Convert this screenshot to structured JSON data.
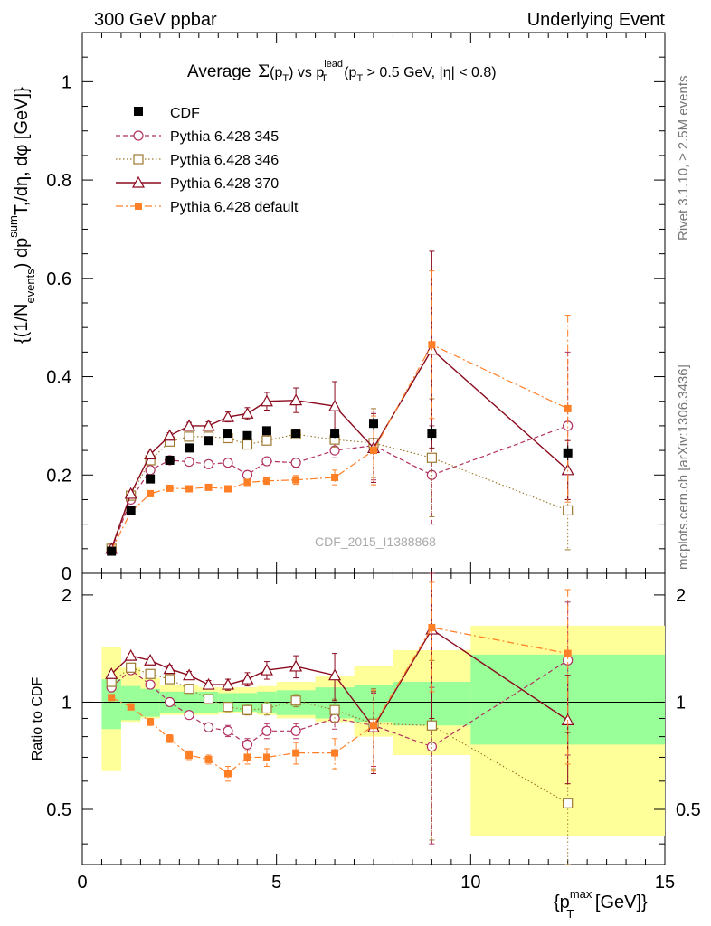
{
  "header": {
    "left": "300 GeV ppbar",
    "right": "Underlying Event"
  },
  "side_text": {
    "rivet": "Rivet 3.1.10, ≥ 2.5M events",
    "mcplots": "mcplots.cern.ch [arXiv:1306.3436]"
  },
  "watermark": "CDF_2015_I1388868",
  "title": {
    "prefix": "Average",
    "sigma": "Σ",
    "paren": "(p",
    "paren_sub": "T",
    "paren_close": ")",
    "vs": " vs p",
    "vs_sup": "lead",
    "vs_sub": "T",
    "cut_a": " (p",
    "cut_sub": "T",
    "cut_b": " > 0.5 GeV, |η| < 0.8)"
  },
  "axes": {
    "ylabel_main": {
      "a": "{(1/N",
      "a_sub": "events",
      "b": ") dp",
      "b_sup": "sum",
      "c": "T",
      "d": ",/dη, dφ [GeV]}"
    },
    "ylabel_ratio": "Ratio to CDF",
    "xlabel": {
      "a": "{p",
      "a_sup": "max",
      "a_sub": "T",
      "b": " [GeV]}"
    }
  },
  "colors": {
    "cdf": "#000000",
    "p345": "#b03060",
    "p346": "#9e7a30",
    "p370": "#8b0a1e",
    "pdef": "#ff7f27",
    "band_outer": "#ffff99",
    "band_inner": "#99ff99"
  },
  "chart_data": {
    "type": "scatter",
    "x_range": [
      0,
      15
    ],
    "main_ylim": [
      0,
      1.1
    ],
    "ratio_ylim": [
      0.35,
      2.3
    ],
    "x_ticks": [
      0,
      5,
      10,
      15
    ],
    "main_y_ticks": [
      0,
      0.2,
      0.4,
      0.6,
      0.8,
      1
    ],
    "ratio_y_ticks": [
      0.5,
      1,
      2
    ],
    "legend_position": "top-left",
    "legend": [
      "CDF",
      "Pythia 6.428 345",
      "Pythia 6.428 346",
      "Pythia 6.428 370",
      "Pythia 6.428 default"
    ],
    "x": [
      0.75,
      1.25,
      1.75,
      2.25,
      2.75,
      3.25,
      3.75,
      4.25,
      4.75,
      5.5,
      6.5,
      7.5,
      9,
      12.5
    ],
    "cdf": {
      "y": [
        0.045,
        0.128,
        0.192,
        0.23,
        0.255,
        0.27,
        0.285,
        0.28,
        0.29,
        0.285,
        0.285,
        0.305,
        0.285,
        0.245
      ],
      "err": [
        0.002,
        0.004,
        0.005,
        0.005,
        0.006,
        0.006,
        0.007,
        0.007,
        0.008,
        0.008,
        0.01,
        0.012,
        0.015,
        0.015
      ],
      "band_xlo": [
        0.5,
        1.0,
        1.5,
        2.0,
        2.5,
        3.0,
        3.5,
        4.0,
        4.5,
        5.0,
        6.0,
        7.0,
        8.0,
        10.0
      ],
      "band_xhi": [
        1.0,
        1.5,
        2.0,
        2.5,
        3.0,
        3.5,
        4.0,
        4.5,
        5.0,
        6.0,
        7.0,
        8.0,
        10.0,
        15.0
      ],
      "band_inner": [
        [
          0.84,
          1.16
        ],
        [
          0.89,
          1.11
        ],
        [
          0.91,
          1.09
        ],
        [
          0.93,
          1.07
        ],
        [
          0.93,
          1.07
        ],
        [
          0.93,
          1.07
        ],
        [
          0.94,
          1.06
        ],
        [
          0.94,
          1.06
        ],
        [
          0.93,
          1.07
        ],
        [
          0.92,
          1.08
        ],
        [
          0.9,
          1.1
        ],
        [
          0.88,
          1.12
        ],
        [
          0.86,
          1.14
        ],
        [
          0.76,
          1.36
        ]
      ],
      "band_outer": [
        [
          0.64,
          1.43
        ],
        [
          0.88,
          1.25
        ],
        [
          0.9,
          1.17
        ],
        [
          0.92,
          1.12
        ],
        [
          0.92,
          1.12
        ],
        [
          0.92,
          1.1
        ],
        [
          0.93,
          1.1
        ],
        [
          0.93,
          1.1
        ],
        [
          0.92,
          1.11
        ],
        [
          0.9,
          1.14
        ],
        [
          0.88,
          1.18
        ],
        [
          0.8,
          1.26
        ],
        [
          0.71,
          1.4
        ],
        [
          0.42,
          1.64
        ]
      ]
    },
    "series": [
      {
        "name": "Pythia 6.428 345",
        "key": "p345",
        "y": [
          0.048,
          0.15,
          0.21,
          0.23,
          0.227,
          0.222,
          0.225,
          0.2,
          0.228,
          0.225,
          0.25,
          0.26,
          0.2,
          0.3
        ],
        "err": [
          0.001,
          0.002,
          0.003,
          0.004,
          0.004,
          0.004,
          0.005,
          0.005,
          0.007,
          0.009,
          0.015,
          0.07,
          0.1,
          0.15
        ],
        "ratio": [
          1.1,
          1.23,
          1.12,
          1.0,
          0.92,
          0.85,
          0.83,
          0.76,
          0.83,
          0.83,
          0.9,
          0.86,
          0.75,
          1.31
        ],
        "ratio_err": [
          0.01,
          0.02,
          0.02,
          0.02,
          0.02,
          0.02,
          0.03,
          0.03,
          0.04,
          0.04,
          0.06,
          0.2,
          0.35,
          0.6
        ]
      },
      {
        "name": "Pythia 6.428 346",
        "key": "p346",
        "y": [
          0.05,
          0.158,
          0.23,
          0.268,
          0.278,
          0.278,
          0.275,
          0.262,
          0.27,
          0.283,
          0.272,
          0.265,
          0.235,
          0.128
        ],
        "err": [
          0.001,
          0.002,
          0.003,
          0.004,
          0.004,
          0.005,
          0.005,
          0.005,
          0.007,
          0.008,
          0.015,
          0.07,
          0.12,
          0.08
        ],
        "ratio": [
          1.14,
          1.25,
          1.2,
          1.16,
          1.09,
          1.02,
          0.97,
          0.95,
          0.96,
          1.01,
          0.95,
          0.87,
          0.86,
          0.52
        ],
        "ratio_err": [
          0.01,
          0.02,
          0.02,
          0.02,
          0.02,
          0.03,
          0.03,
          0.03,
          0.04,
          0.04,
          0.07,
          0.22,
          0.45,
          0.3
        ]
      },
      {
        "name": "Pythia 6.428 370",
        "key": "p370",
        "y": [
          0.05,
          0.162,
          0.242,
          0.28,
          0.3,
          0.3,
          0.318,
          0.325,
          0.35,
          0.352,
          0.34,
          0.255,
          0.455,
          0.21
        ],
        "err": [
          0.001,
          0.003,
          0.005,
          0.006,
          0.007,
          0.008,
          0.01,
          0.012,
          0.018,
          0.025,
          0.05,
          0.07,
          0.2,
          0.06
        ],
        "ratio": [
          1.2,
          1.35,
          1.31,
          1.24,
          1.19,
          1.12,
          1.12,
          1.16,
          1.23,
          1.26,
          1.19,
          0.85,
          1.6,
          0.89
        ],
        "ratio_err": [
          0.01,
          0.02,
          0.03,
          0.03,
          0.03,
          0.03,
          0.04,
          0.05,
          0.07,
          0.09,
          0.18,
          0.22,
          0.7,
          0.3
        ]
      },
      {
        "name": "Pythia 6.428 default",
        "key": "pdef",
        "y": [
          0.047,
          0.125,
          0.162,
          0.173,
          0.172,
          0.175,
          0.172,
          0.185,
          0.188,
          0.19,
          0.195,
          0.25,
          0.465,
          0.335
        ],
        "err": [
          0.001,
          0.002,
          0.003,
          0.003,
          0.003,
          0.004,
          0.004,
          0.005,
          0.007,
          0.009,
          0.015,
          0.07,
          0.15,
          0.19
        ],
        "ratio": [
          1.03,
          0.97,
          0.88,
          0.79,
          0.71,
          0.69,
          0.63,
          0.7,
          0.7,
          0.72,
          0.72,
          0.86,
          1.62,
          1.37
        ],
        "ratio_err": [
          0.01,
          0.02,
          0.02,
          0.02,
          0.02,
          0.02,
          0.03,
          0.03,
          0.04,
          0.05,
          0.07,
          0.22,
          0.55,
          0.7
        ]
      }
    ]
  }
}
